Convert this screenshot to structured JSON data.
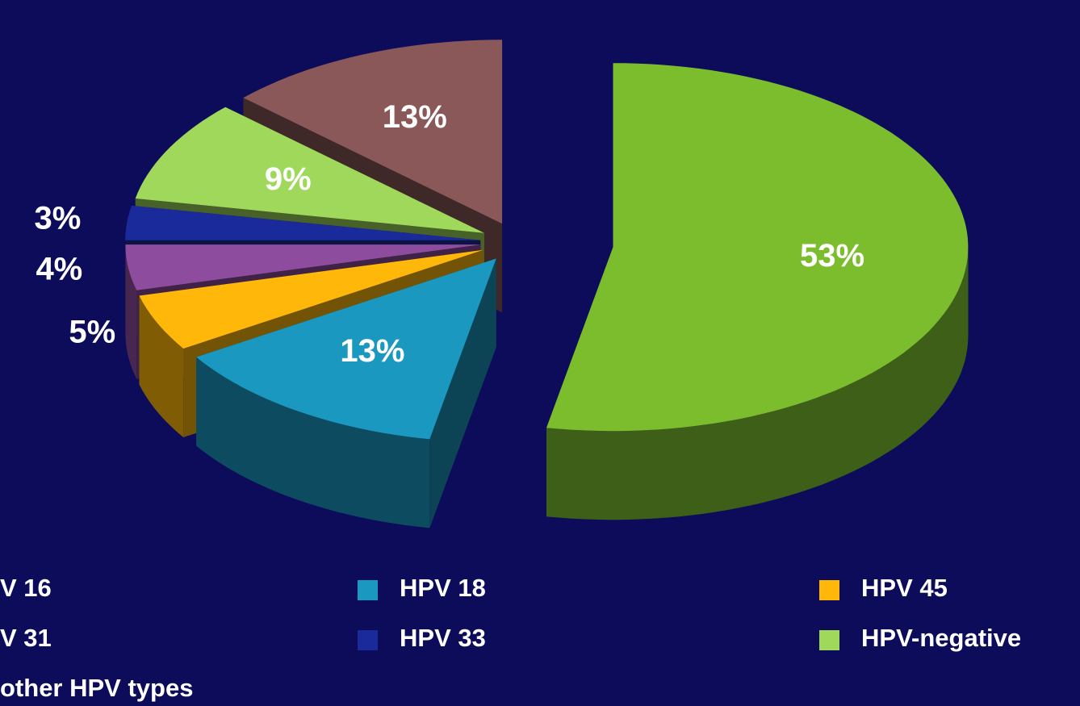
{
  "chart_data": {
    "type": "pie",
    "categories": [
      "V 16",
      "HPV 18",
      "HPV 45",
      "V 31",
      "HPV 33",
      "HPV-negative",
      "other HPV types"
    ],
    "values": [
      53,
      13,
      5,
      4,
      3,
      9,
      13
    ],
    "value_labels": [
      "53%",
      "13%",
      "5%",
      "4%",
      "3%",
      "9%",
      "13%"
    ],
    "colors": [
      "#7cbd2d",
      "#1a98c0",
      "#ffb80a",
      "#8e4c9e",
      "#1a2a9a",
      "#a0d85c",
      "#8a5858"
    ],
    "legend": "bottom"
  }
}
